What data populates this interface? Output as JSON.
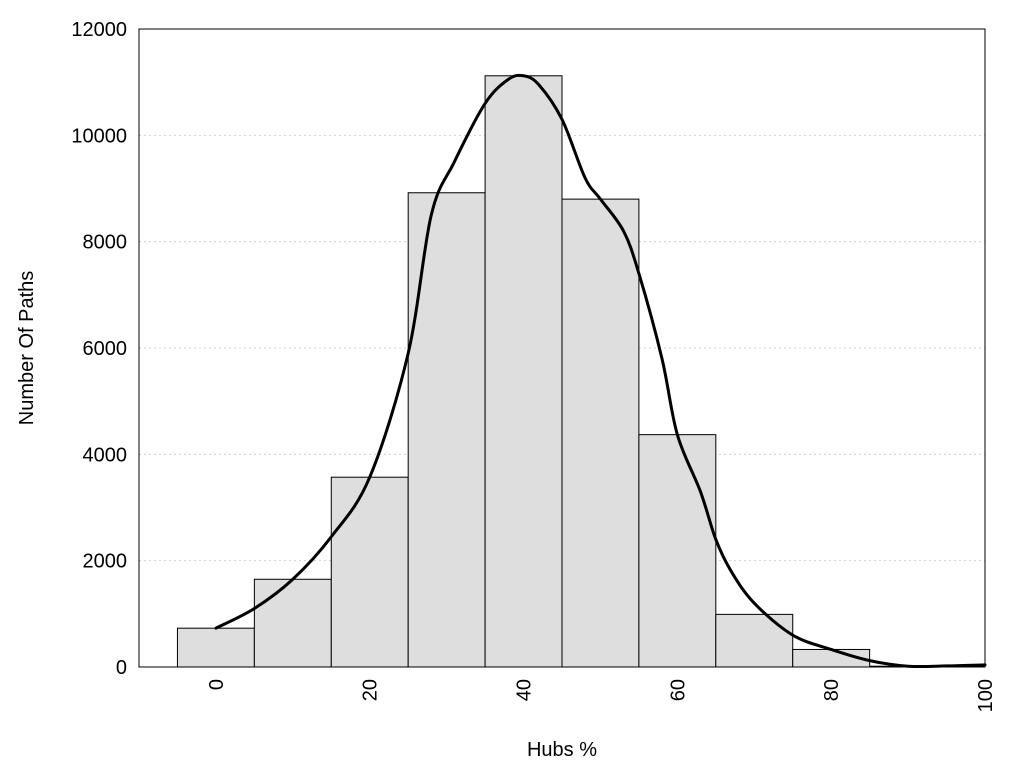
{
  "chart_data": {
    "type": "bar",
    "title": "",
    "xlabel": "Hubs %",
    "ylabel": "Number Of Paths",
    "xlim": [
      -10,
      100
    ],
    "ylim": [
      0,
      12000
    ],
    "grid": true,
    "x_ticks": [
      0,
      20,
      40,
      60,
      80,
      100
    ],
    "y_ticks": [
      0,
      2000,
      4000,
      6000,
      8000,
      10000,
      12000
    ],
    "bin_width": 10,
    "bins": [
      0,
      10,
      20,
      30,
      40,
      50,
      60,
      70,
      80,
      90
    ],
    "values": [
      730,
      1650,
      3570,
      8920,
      11120,
      8800,
      4370,
      990,
      330,
      15
    ],
    "series": [
      {
        "type": "line",
        "x": [
          0,
          5,
          10,
          15,
          20,
          25,
          28,
          31,
          35,
          38,
          40,
          42,
          45,
          48,
          50,
          53,
          55,
          58,
          60,
          63,
          65,
          67,
          70,
          75,
          80,
          85,
          90,
          95,
          100
        ],
        "values": [
          730,
          1100,
          1650,
          2450,
          3570,
          5900,
          8500,
          9500,
          10600,
          11050,
          11120,
          10950,
          10300,
          9200,
          8800,
          8200,
          7400,
          5800,
          4370,
          3300,
          2400,
          1800,
          1200,
          600,
          330,
          120,
          15,
          20,
          40
        ]
      }
    ]
  }
}
